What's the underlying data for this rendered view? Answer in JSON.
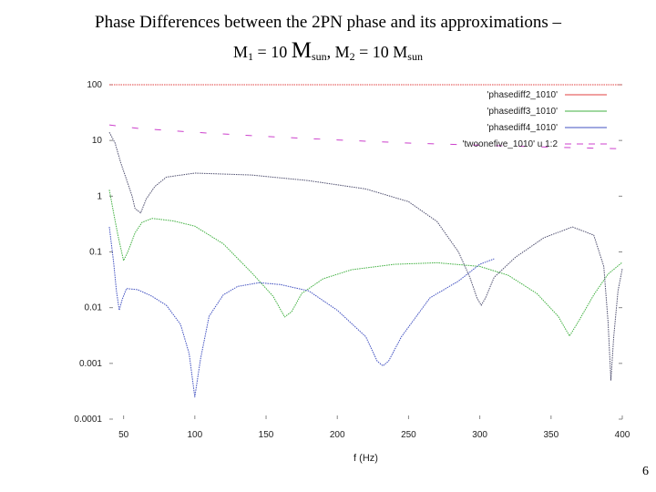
{
  "slide": {
    "title_line1": "Phase Differences between the 2PN phase and its approximations –",
    "title_m1": "M",
    "title_m1_sub": "1",
    "title_m1_value": " = 10 ",
    "title_msun1": "M",
    "title_msun1_sub": "sun",
    "title_sep": ", ",
    "title_m2": "M",
    "title_m2_sub": "2",
    "title_m2_value": " = 10 ",
    "title_msun2": "M",
    "title_msun2_sub": "sun",
    "page_number": "6"
  },
  "chart_data": {
    "type": "line",
    "title": "",
    "xlabel": "f (Hz)",
    "ylabel": "",
    "yscale": "log",
    "xlim": [
      40,
      400
    ],
    "ylim": [
      0.0001,
      100
    ],
    "x_ticks": [
      "50",
      "100",
      "150",
      "200",
      "250",
      "300",
      "350",
      "400"
    ],
    "y_ticks": [
      "100",
      "10",
      "1",
      "0.1",
      "0.01",
      "0.001",
      "0.0001"
    ],
    "legend_position": "top-right",
    "series": [
      {
        "name": "'phasediff2_1010'",
        "color": "#e04040",
        "dash": "solid",
        "points": [
          [
            40,
            100
          ],
          [
            400,
            100
          ]
        ]
      },
      {
        "name": "'phasediff3_1010'",
        "color": "#40b040",
        "dash": "solid",
        "points": [
          [
            40,
            1.3
          ],
          [
            43,
            0.5
          ],
          [
            46,
            0.2
          ],
          [
            50,
            0.07
          ],
          [
            53,
            0.1
          ],
          [
            58,
            0.22
          ],
          [
            63,
            0.34
          ],
          [
            70,
            0.4
          ],
          [
            85,
            0.36
          ],
          [
            100,
            0.29
          ],
          [
            120,
            0.14
          ],
          [
            140,
            0.042
          ],
          [
            155,
            0.016
          ],
          [
            163,
            0.0068
          ],
          [
            168,
            0.0085
          ],
          [
            175,
            0.018
          ],
          [
            190,
            0.033
          ],
          [
            210,
            0.048
          ],
          [
            240,
            0.06
          ],
          [
            270,
            0.064
          ],
          [
            300,
            0.055
          ],
          [
            320,
            0.038
          ],
          [
            340,
            0.018
          ],
          [
            355,
            0.007
          ],
          [
            363,
            0.0031
          ],
          [
            369,
            0.0055
          ],
          [
            380,
            0.017
          ],
          [
            390,
            0.04
          ],
          [
            400,
            0.065
          ]
        ]
      },
      {
        "name": "'phasediff4_1010'",
        "color": "#4050c0",
        "dash": "solid",
        "points": [
          [
            40,
            0.28
          ],
          [
            43,
            0.065
          ],
          [
            45,
            0.02
          ],
          [
            47,
            0.009
          ],
          [
            49,
            0.014
          ],
          [
            52,
            0.022
          ],
          [
            60,
            0.021
          ],
          [
            70,
            0.016
          ],
          [
            80,
            0.011
          ],
          [
            90,
            0.005
          ],
          [
            96,
            0.0015
          ],
          [
            100,
            0.00025
          ],
          [
            104,
            0.0012
          ],
          [
            110,
            0.007
          ],
          [
            120,
            0.017
          ],
          [
            130,
            0.024
          ],
          [
            145,
            0.028
          ],
          [
            160,
            0.026
          ],
          [
            180,
            0.02
          ],
          [
            200,
            0.009
          ],
          [
            220,
            0.003
          ],
          [
            228,
            0.0011
          ],
          [
            232,
            0.0009
          ],
          [
            236,
            0.0011
          ],
          [
            245,
            0.003
          ],
          [
            265,
            0.015
          ],
          [
            285,
            0.03
          ],
          [
            300,
            0.06
          ],
          [
            310,
            0.075
          ]
        ]
      },
      {
        "name": "'twoonefive_1010' u 1:2",
        "color": "#cc40cc",
        "dash": "dashed",
        "points": [
          [
            40,
            19
          ],
          [
            60,
            16.5
          ],
          [
            100,
            14
          ],
          [
            150,
            11.8
          ],
          [
            200,
            10.2
          ],
          [
            250,
            9
          ],
          [
            300,
            8.2
          ],
          [
            350,
            7.6
          ],
          [
            400,
            7.1
          ]
        ]
      },
      {
        "name": "",
        "color": "#505070",
        "dash": "solid",
        "points": [
          [
            40,
            14
          ],
          [
            44,
            9
          ],
          [
            48,
            4
          ],
          [
            52,
            2
          ],
          [
            56,
            1
          ],
          [
            58,
            0.6
          ],
          [
            62,
            0.5
          ],
          [
            66,
            0.9
          ],
          [
            72,
            1.5
          ],
          [
            80,
            2.2
          ],
          [
            100,
            2.6
          ],
          [
            140,
            2.4
          ],
          [
            180,
            1.9
          ],
          [
            220,
            1.35
          ],
          [
            250,
            0.8
          ],
          [
            270,
            0.35
          ],
          [
            285,
            0.1
          ],
          [
            293,
            0.035
          ],
          [
            298,
            0.015
          ],
          [
            301,
            0.011
          ],
          [
            304,
            0.015
          ],
          [
            310,
            0.035
          ],
          [
            325,
            0.08
          ],
          [
            345,
            0.18
          ],
          [
            365,
            0.28
          ],
          [
            380,
            0.2
          ],
          [
            387,
            0.055
          ],
          [
            390,
            0.0055
          ],
          [
            392,
            0.0005
          ],
          [
            394,
            0.003
          ],
          [
            397,
            0.02
          ],
          [
            400,
            0.05
          ]
        ]
      }
    ]
  }
}
